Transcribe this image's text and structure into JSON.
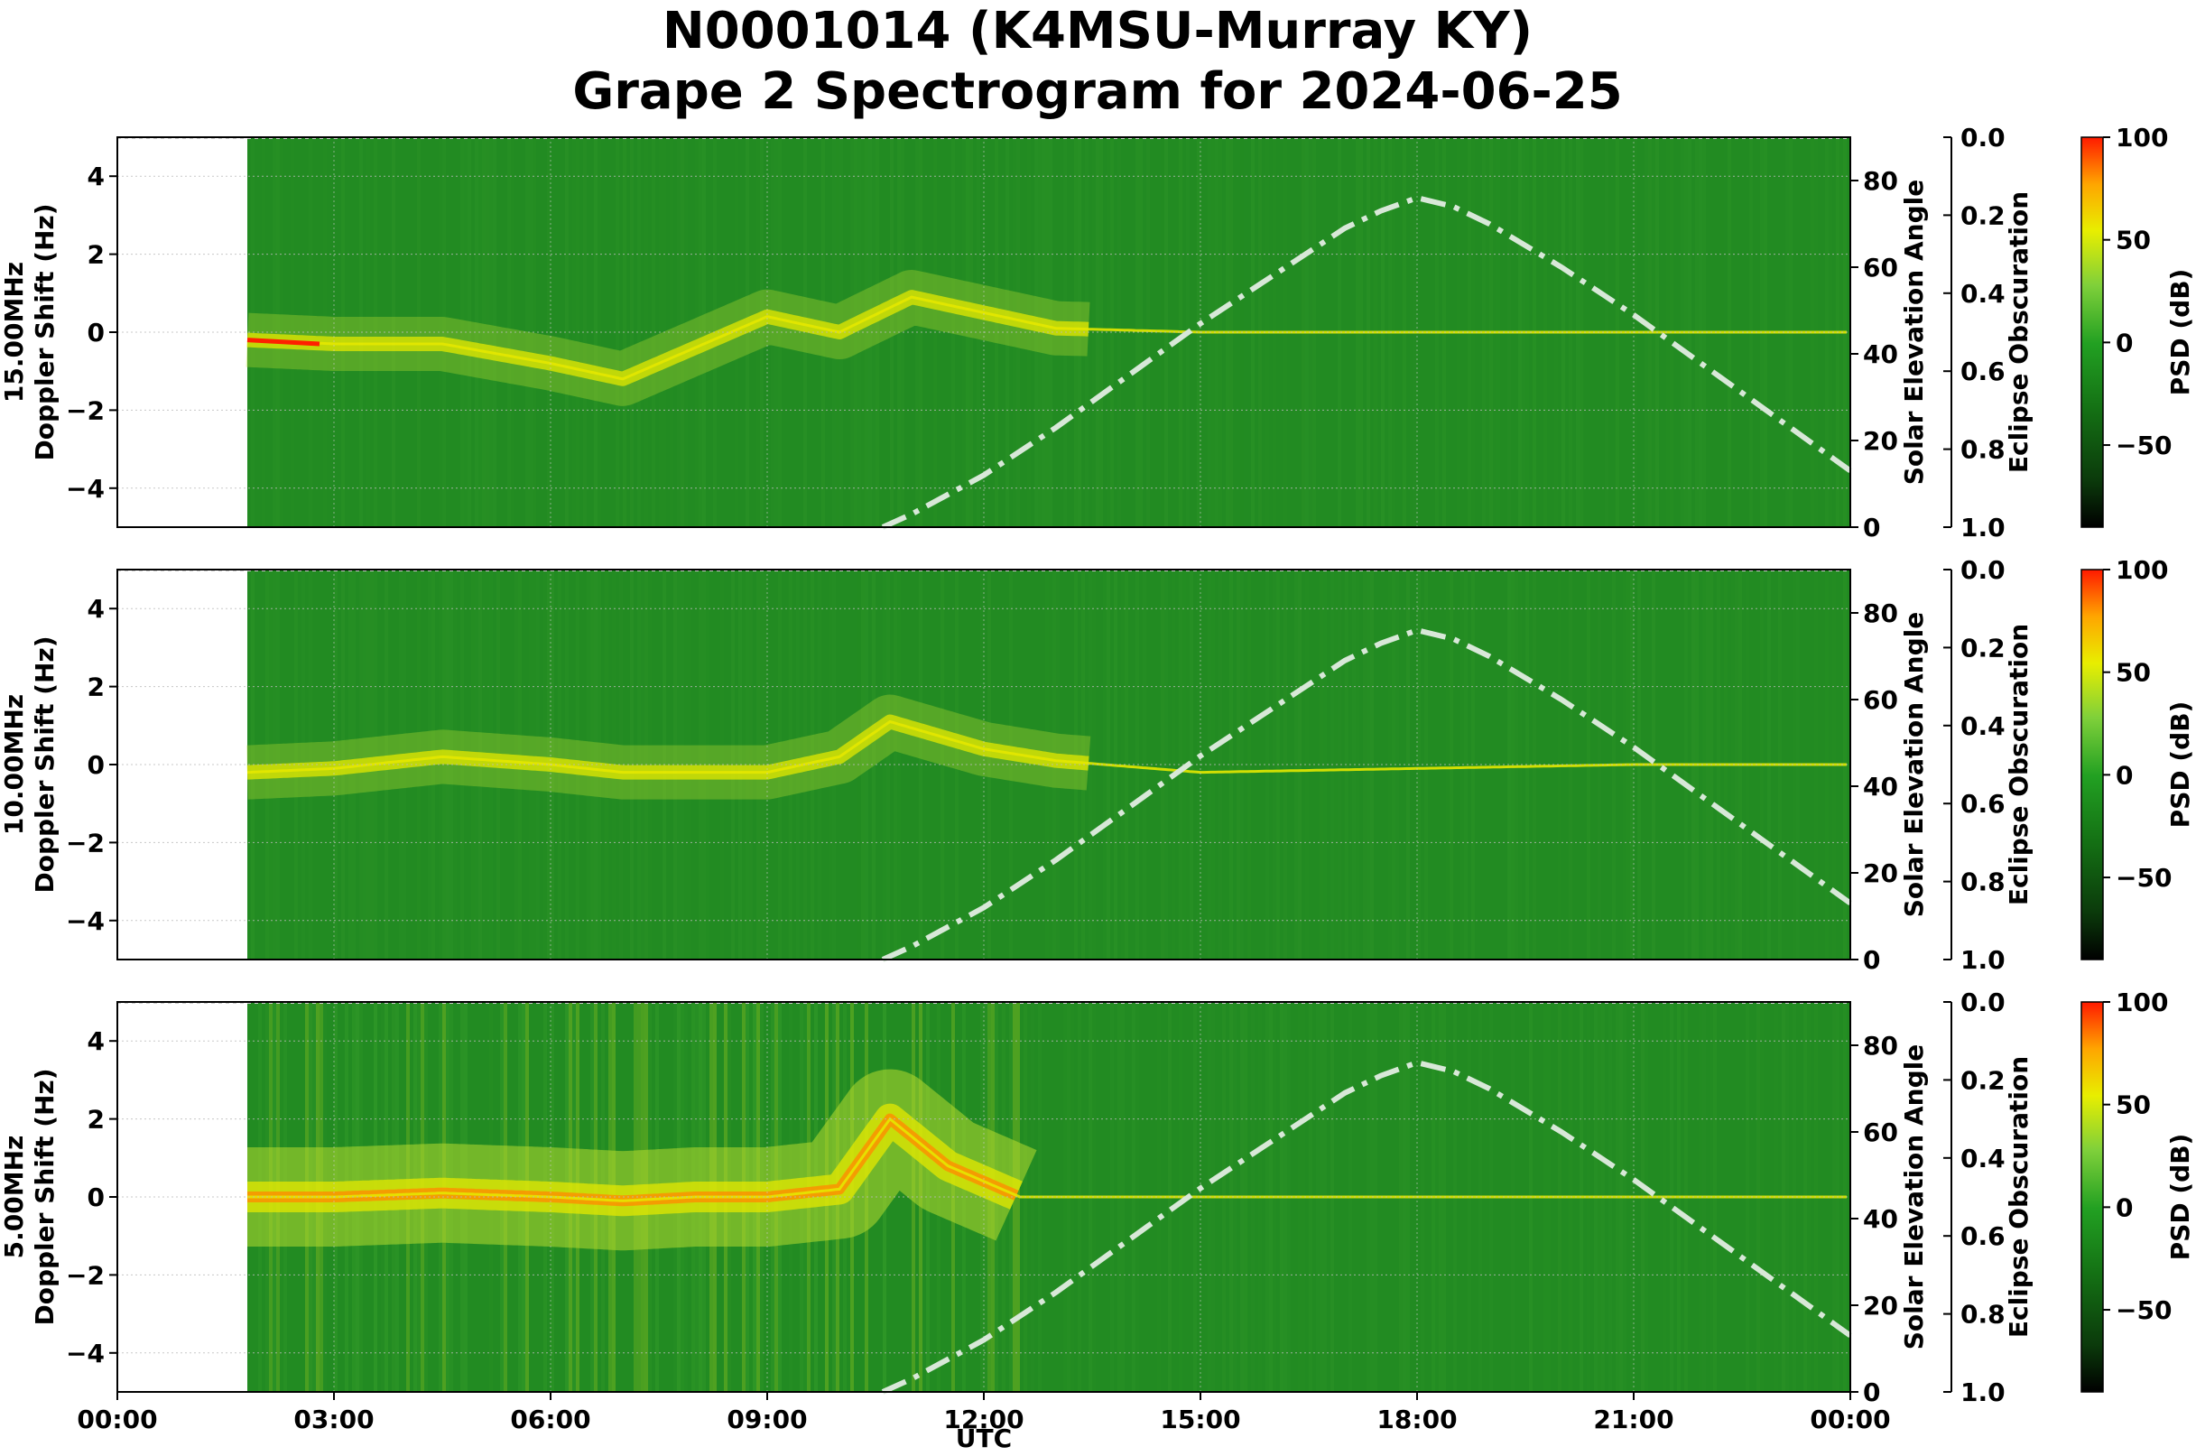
{
  "title_line1": "N0001014 (K4MSU-Murray KY)",
  "title_line2": "Grape 2 Spectrogram for 2024-06-25",
  "chart_data": [
    {
      "type": "heatmap",
      "frequency": "15.00MHz",
      "ylabel_lines": [
        "15.00MHz",
        "Doppler Shift (Hz)"
      ],
      "ylim": [
        -5,
        5
      ],
      "yticks": [
        "4",
        "2",
        "0",
        "−2",
        "−4"
      ],
      "xlim_hours": [
        0,
        24
      ],
      "data_start_hour": 1.8,
      "dominant_trace_doppler_hz": [
        [
          1.8,
          -0.2
        ],
        [
          3.0,
          -0.3
        ],
        [
          4.5,
          -0.3
        ],
        [
          6.0,
          -0.8
        ],
        [
          7.0,
          -1.2
        ],
        [
          8.0,
          -0.4
        ],
        [
          9.0,
          0.4
        ],
        [
          10.0,
          0.0
        ],
        [
          11.0,
          0.9
        ],
        [
          12.0,
          0.5
        ],
        [
          13.0,
          0.1
        ],
        [
          15.0,
          0.0
        ],
        [
          18.0,
          0.0
        ],
        [
          21.0,
          0.0
        ],
        [
          24.0,
          0.0
        ]
      ],
      "secondary_yaxis": {
        "label": "Solar Elevation Angle",
        "ticks": [
          "0",
          "20",
          "40",
          "60",
          "80"
        ],
        "range": [
          0,
          90
        ]
      },
      "eclipse_axis": {
        "label": "Eclipse Obscuration",
        "ticks": [
          "0.0",
          "0.2",
          "0.4",
          "0.6",
          "0.8",
          "1.0"
        ],
        "range": [
          0,
          1
        ]
      },
      "colorbar": {
        "label": "PSD (dB)",
        "ticks": [
          "100",
          "50",
          "0",
          "−50"
        ],
        "range": [
          -90,
          100
        ]
      }
    },
    {
      "type": "heatmap",
      "frequency": "10.00MHz",
      "ylabel_lines": [
        "10.00MHz",
        "Doppler Shift (Hz)"
      ],
      "ylim": [
        -5,
        5
      ],
      "yticks": [
        "4",
        "2",
        "0",
        "−2",
        "−4"
      ],
      "xlim_hours": [
        0,
        24
      ],
      "data_start_hour": 1.8,
      "dominant_trace_doppler_hz": [
        [
          1.8,
          -0.2
        ],
        [
          3.0,
          -0.1
        ],
        [
          4.5,
          0.2
        ],
        [
          6.0,
          0.0
        ],
        [
          7.0,
          -0.2
        ],
        [
          8.0,
          -0.2
        ],
        [
          9.0,
          -0.2
        ],
        [
          10.0,
          0.2
        ],
        [
          10.7,
          1.1
        ],
        [
          12.0,
          0.4
        ],
        [
          13.0,
          0.1
        ],
        [
          15.0,
          -0.2
        ],
        [
          18.0,
          -0.1
        ],
        [
          21.0,
          0.0
        ],
        [
          24.0,
          0.0
        ]
      ],
      "secondary_yaxis": {
        "label": "Solar Elevation Angle",
        "ticks": [
          "0",
          "20",
          "40",
          "60",
          "80"
        ],
        "range": [
          0,
          90
        ]
      },
      "eclipse_axis": {
        "label": "Eclipse Obscuration",
        "ticks": [
          "0.0",
          "0.2",
          "0.4",
          "0.6",
          "0.8",
          "1.0"
        ],
        "range": [
          0,
          1
        ]
      },
      "colorbar": {
        "label": "PSD (dB)",
        "ticks": [
          "100",
          "50",
          "0",
          "−50"
        ],
        "range": [
          -90,
          100
        ]
      }
    },
    {
      "type": "heatmap",
      "frequency": "5.00MHz",
      "ylabel_lines": [
        "5.00MHz",
        "Doppler Shift (Hz)"
      ],
      "ylim": [
        -5,
        5
      ],
      "yticks": [
        "4",
        "2",
        "0",
        "−2",
        "−4"
      ],
      "xlim_hours": [
        0,
        24
      ],
      "data_start_hour": 1.8,
      "dominant_trace_doppler_hz": [
        [
          1.8,
          0.0
        ],
        [
          3.0,
          0.0
        ],
        [
          4.5,
          0.1
        ],
        [
          6.0,
          0.0
        ],
        [
          7.0,
          -0.1
        ],
        [
          8.0,
          0.0
        ],
        [
          9.0,
          0.0
        ],
        [
          10.0,
          0.2
        ],
        [
          10.7,
          2.0
        ],
        [
          11.5,
          0.8
        ],
        [
          12.5,
          0.0
        ],
        [
          15.0,
          0.0
        ],
        [
          18.0,
          0.0
        ],
        [
          21.0,
          0.0
        ],
        [
          24.0,
          0.0
        ]
      ],
      "secondary_yaxis": {
        "label": "Solar Elevation Angle",
        "ticks": [
          "0",
          "20",
          "40",
          "60",
          "80"
        ],
        "range": [
          0,
          90
        ]
      },
      "eclipse_axis": {
        "label": "Eclipse Obscuration",
        "ticks": [
          "0.0",
          "0.2",
          "0.4",
          "0.6",
          "0.8",
          "1.0"
        ],
        "range": [
          0,
          1
        ]
      },
      "colorbar": {
        "label": "PSD (dB)",
        "ticks": [
          "100",
          "50",
          "0",
          "−50"
        ],
        "range": [
          -90,
          100
        ]
      }
    }
  ],
  "solar_elevation_deg": [
    [
      10.6,
      0
    ],
    [
      11.0,
      3
    ],
    [
      12.0,
      12
    ],
    [
      13.0,
      23
    ],
    [
      14.0,
      35
    ],
    [
      15.0,
      47
    ],
    [
      16.0,
      58
    ],
    [
      17.0,
      69
    ],
    [
      17.5,
      73
    ],
    [
      18.0,
      76
    ],
    [
      18.5,
      74
    ],
    [
      19.0,
      70
    ],
    [
      20.0,
      60
    ],
    [
      21.0,
      49
    ],
    [
      22.0,
      37
    ],
    [
      23.0,
      25
    ],
    [
      24.0,
      13
    ]
  ],
  "xaxis": {
    "ticks": [
      "00:00",
      "03:00",
      "06:00",
      "09:00",
      "12:00",
      "15:00",
      "18:00",
      "21:00",
      "00:00"
    ],
    "label": "UTC"
  },
  "colors": {
    "background_green": "#228b22",
    "trace_yellow": "#e4e800",
    "trace_red": "#ff2000",
    "elevation_curve": "#d8e8d8"
  }
}
